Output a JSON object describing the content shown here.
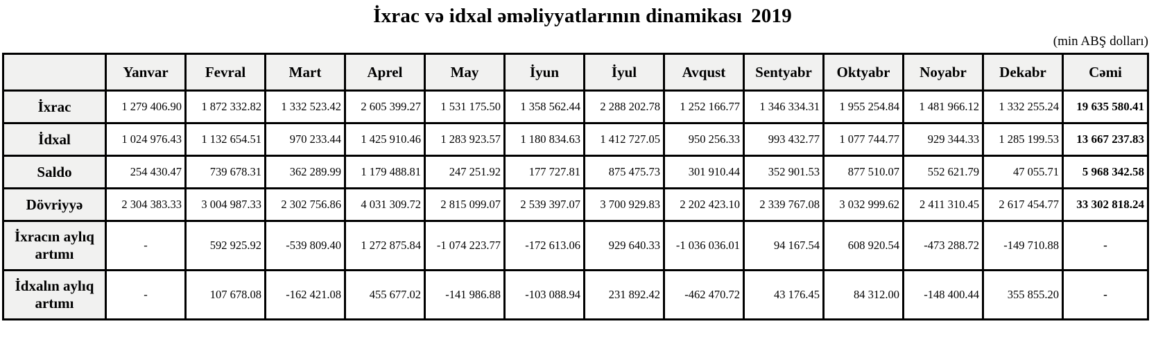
{
  "title": {
    "text": "İxrac və idxal əməliyyatlarının dinamikası",
    "year": "2019"
  },
  "unit_note": "(min ABŞ dolları)",
  "colors": {
    "header_bg": "#f1f1f0",
    "cell_bg": "#ffffff",
    "border": "#000000",
    "text": "#000000"
  },
  "table": {
    "corner_label": "",
    "columns": [
      "Yanvar",
      "Fevral",
      "Mart",
      "Aprel",
      "May",
      "İyun",
      "İyul",
      "Avqust",
      "Sentyabr",
      "Oktyabr",
      "Noyabr",
      "Dekabr",
      "Cəmi"
    ],
    "rows": [
      {
        "label": "İxrac",
        "values": [
          "1 279 406.90",
          "1 872 332.82",
          "1 332 523.42",
          "2 605 399.27",
          "1 531 175.50",
          "1 358 562.44",
          "2 288 202.78",
          "1 252 166.77",
          "1 346 334.31",
          "1 955 254.84",
          "1 481 966.12",
          "1 332 255.24",
          "19 635 580.41"
        ]
      },
      {
        "label": "İdxal",
        "values": [
          "1 024 976.43",
          "1 132 654.51",
          "970 233.44",
          "1 425 910.46",
          "1 283 923.57",
          "1 180 834.63",
          "1 412 727.05",
          "950 256.33",
          "993 432.77",
          "1 077 744.77",
          "929 344.33",
          "1 285 199.53",
          "13 667 237.83"
        ]
      },
      {
        "label": "Saldo",
        "values": [
          "254 430.47",
          "739 678.31",
          "362 289.99",
          "1 179 488.81",
          "247 251.92",
          "177 727.81",
          "875 475.73",
          "301 910.44",
          "352 901.53",
          "877 510.07",
          "552 621.79",
          "47 055.71",
          "5 968 342.58"
        ]
      },
      {
        "label": "Dövriyyə",
        "values": [
          "2 304 383.33",
          "3 004 987.33",
          "2 302 756.86",
          "4 031 309.72",
          "2 815 099.07",
          "2 539 397.07",
          "3 700 929.83",
          "2 202 423.10",
          "2 339 767.08",
          "3 032 999.62",
          "2 411 310.45",
          "2 617 454.77",
          "33 302 818.24"
        ]
      },
      {
        "label": "İxracın aylıq artımı",
        "values": [
          "-",
          "592 925.92",
          "-539 809.40",
          "1 272 875.84",
          "-1 074 223.77",
          "-172 613.06",
          "929 640.33",
          "-1 036 036.01",
          "94 167.54",
          "608 920.54",
          "-473 288.72",
          "-149 710.88",
          "-"
        ]
      },
      {
        "label": "İdxalın aylıq artımı",
        "values": [
          "-",
          "107 678.08",
          "-162 421.08",
          "455 677.02",
          "-141 986.88",
          "-103 088.94",
          "231 892.42",
          "-462 470.72",
          "43 176.45",
          "84 312.00",
          "-148 400.44",
          "355 855.20",
          "-"
        ]
      }
    ],
    "layout": {
      "label_col_width": 148,
      "month_col_width": 115,
      "total_col_width": 123
    }
  }
}
